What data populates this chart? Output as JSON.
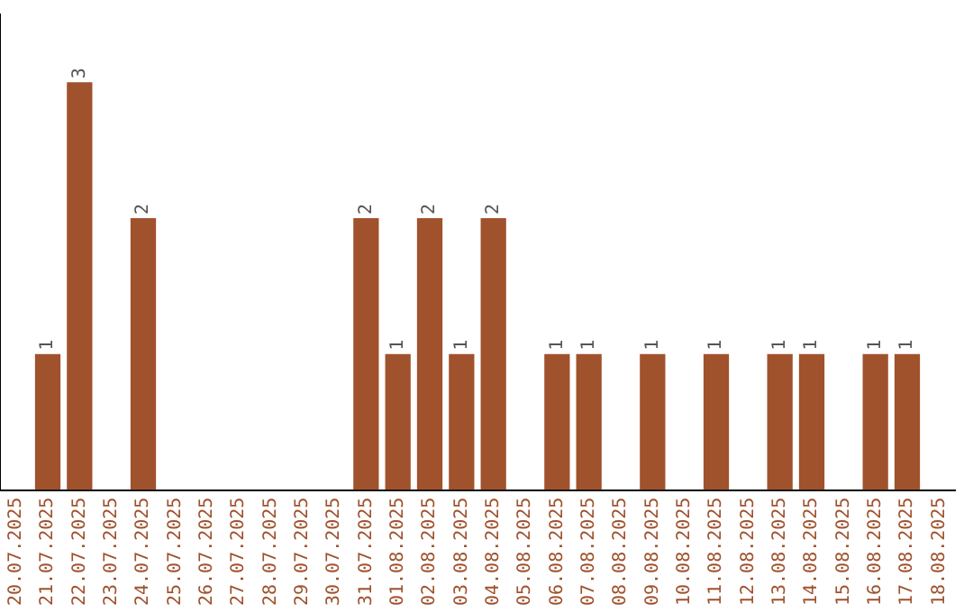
{
  "chart_data": {
    "type": "bar",
    "categories": [
      "20.07.2025",
      "21.07.2025",
      "22.07.2025",
      "23.07.2025",
      "24.07.2025",
      "25.07.2025",
      "26.07.2025",
      "27.07.2025",
      "28.07.2025",
      "29.07.2025",
      "30.07.2025",
      "31.07.2025",
      "01.08.2025",
      "02.08.2025",
      "03.08.2025",
      "04.08.2025",
      "05.08.2025",
      "06.08.2025",
      "07.08.2025",
      "08.08.2025",
      "09.08.2025",
      "10.08.2025",
      "11.08.2025",
      "12.08.2025",
      "13.08.2025",
      "14.08.2025",
      "15.08.2025",
      "16.08.2025",
      "17.08.2025",
      "18.08.2025"
    ],
    "values": [
      0,
      1,
      3,
      0,
      2,
      0,
      0,
      0,
      0,
      0,
      0,
      2,
      1,
      2,
      1,
      2,
      0,
      1,
      1,
      0,
      1,
      0,
      1,
      0,
      1,
      1,
      0,
      1,
      1,
      0
    ],
    "value_labels": [
      null,
      "1",
      "3",
      null,
      "2",
      null,
      null,
      null,
      null,
      null,
      null,
      "2",
      "1",
      "2",
      "1",
      "2",
      null,
      "1",
      "1",
      null,
      "1",
      null,
      "1",
      null,
      "1",
      "1",
      null,
      "1",
      "1",
      null
    ],
    "color": "#a0522d",
    "tick_labels": "x",
    "grid": false,
    "legend": false
  }
}
